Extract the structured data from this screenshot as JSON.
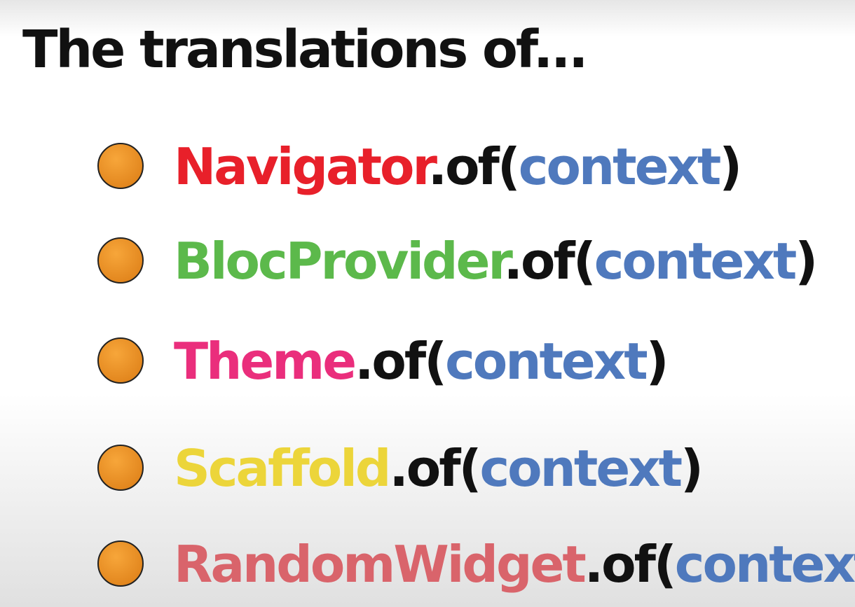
{
  "title": "The translations of...",
  "method_color": "#111111",
  "argument_color": "#4f79bd",
  "items": [
    {
      "name": "Navigator",
      "color": "#e8202a",
      "method": ".of(",
      "argument": "context",
      "close": ")"
    },
    {
      "name": "BlocProvider",
      "color": "#5cb94b",
      "method": ".of(",
      "argument": "context",
      "close": ")"
    },
    {
      "name": "Theme",
      "color": "#ea2e7c",
      "method": ".of(",
      "argument": "context",
      "close": ")"
    },
    {
      "name": "Scaffold",
      "color": "#ecd53a",
      "method": ".of(",
      "argument": "context",
      "close": ")"
    },
    {
      "name": "RandomWidget",
      "color": "#d9646b",
      "method": ".of(",
      "argument": "context",
      "close": ")"
    }
  ]
}
